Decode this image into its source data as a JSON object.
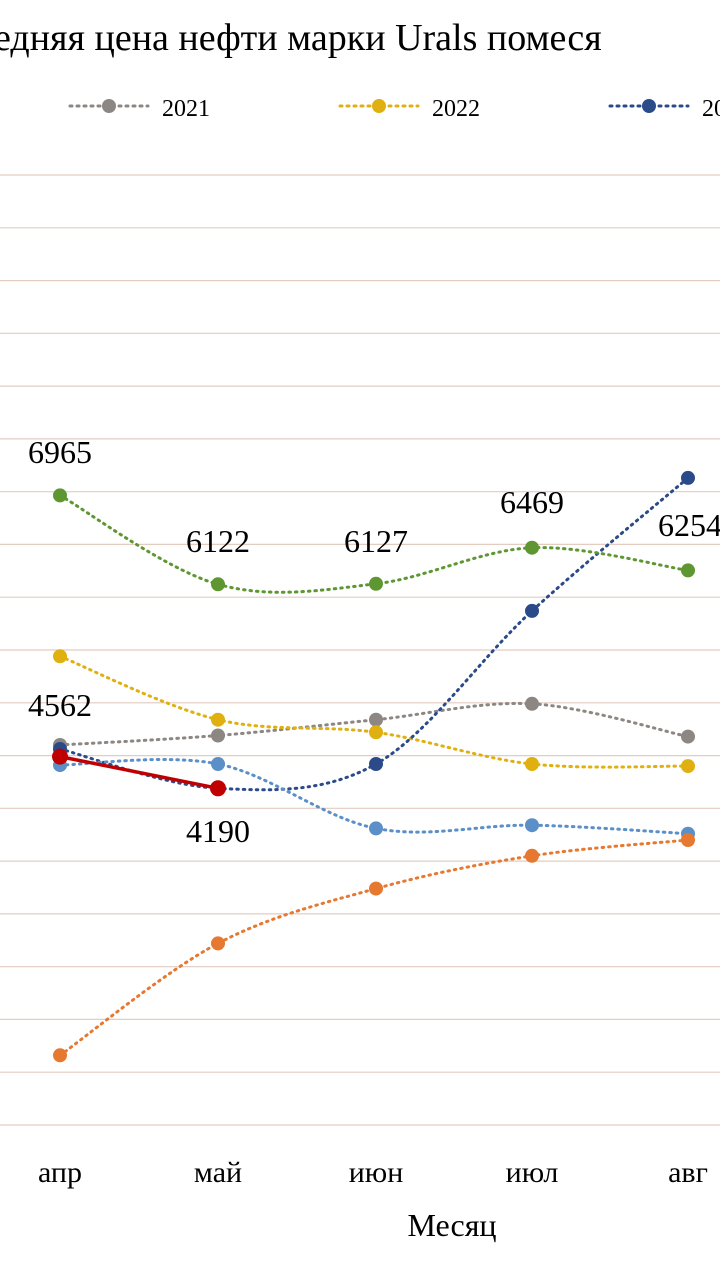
{
  "chart_data": {
    "type": "line",
    "title": "едняя цена нефти марки Urals помеся",
    "xlabel": "Месяц",
    "ylabel": "",
    "categories": [
      "апр",
      "май",
      "июн",
      "июл",
      "авг"
    ],
    "ylim": [
      1000,
      10000
    ],
    "grid": true,
    "legend_position": "top",
    "legend": [
      "2021",
      "2022",
      "20"
    ],
    "series": [
      {
        "name": "2021",
        "color": "#8c8782",
        "style": "dotted",
        "values": [
          4600,
          4690,
          4840,
          4990,
          4680
        ]
      },
      {
        "name": "2022",
        "color": "#e0b010",
        "style": "dotted",
        "values": [
          5440,
          4840,
          4720,
          4420,
          4400
        ]
      },
      {
        "name": "20",
        "color": "#2b4a8a",
        "style": "dotted",
        "values": [
          4562,
          4190,
          4420,
          5870,
          7130
        ]
      },
      {
        "name": "",
        "color": "#5e9732",
        "style": "dotted",
        "values": [
          6965,
          6122,
          6127,
          6469,
          6254
        ]
      },
      {
        "name": "",
        "color": "#5a8fc8",
        "style": "dotted",
        "values": [
          4410,
          4420,
          3810,
          3840,
          3760
        ]
      },
      {
        "name": "",
        "color": "#e67830",
        "style": "dotted",
        "values": [
          1660,
          2720,
          3240,
          3550,
          3700
        ]
      },
      {
        "name": "",
        "color": "#c00000",
        "style": "solid",
        "values": [
          4490,
          4190,
          null,
          null,
          null
        ]
      }
    ],
    "data_labels": [
      {
        "text": "6965"
      },
      {
        "text": "6122"
      },
      {
        "text": "6127"
      },
      {
        "text": "6469"
      },
      {
        "text": "6254"
      },
      {
        "text": "4562"
      },
      {
        "text": "4190"
      }
    ]
  }
}
